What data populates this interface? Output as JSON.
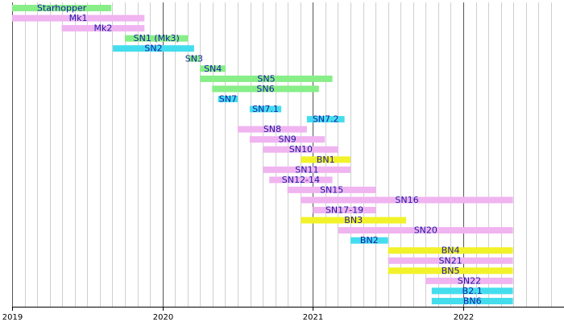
{
  "chart_data": {
    "type": "gantt",
    "title": "",
    "xlabel": "",
    "ylabel": "",
    "x_unit": "year",
    "xlim": [
      2019.0,
      2022.6
    ],
    "grid": {
      "major": "yearly",
      "minor": "monthly"
    },
    "tick_labels": [
      "2019",
      "2020",
      "2021",
      "2022"
    ],
    "tick_values": [
      2019,
      2020,
      2021,
      2022
    ],
    "colors": {
      "green": "#88ee88",
      "pink": "#f0b4f0",
      "cyan": "#44ddee",
      "yellow": "#f2f22a",
      "label": "#1a1aa6"
    },
    "bars": [
      {
        "label": "Starhopper",
        "start": 2019.0,
        "end": 2019.66,
        "color": "green"
      },
      {
        "label": "Mk1",
        "start": 2019.0,
        "end": 2019.88,
        "color": "pink"
      },
      {
        "label": "Mk2",
        "start": 2019.33,
        "end": 2019.88,
        "color": "pink"
      },
      {
        "label": "SN1 (Mk3)",
        "start": 2019.75,
        "end": 2020.17,
        "color": "green"
      },
      {
        "label": "SN2",
        "start": 2019.67,
        "end": 2020.21,
        "color": "cyan"
      },
      {
        "label": "SN3",
        "start": 2020.17,
        "end": 2020.25,
        "color": "green"
      },
      {
        "label": "SN4",
        "start": 2020.25,
        "end": 2020.42,
        "color": "green"
      },
      {
        "label": "SN5",
        "start": 2020.25,
        "end": 2021.13,
        "color": "green"
      },
      {
        "label": "SN6",
        "start": 2020.33,
        "end": 2021.04,
        "color": "green"
      },
      {
        "label": "SN7",
        "start": 2020.37,
        "end": 2020.5,
        "color": "cyan"
      },
      {
        "label": "SN7.1",
        "start": 2020.58,
        "end": 2020.79,
        "color": "cyan"
      },
      {
        "label": "SN7.2",
        "start": 2020.96,
        "end": 2021.21,
        "color": "cyan"
      },
      {
        "label": "SN8",
        "start": 2020.5,
        "end": 2020.96,
        "color": "pink"
      },
      {
        "label": "SN9",
        "start": 2020.58,
        "end": 2021.08,
        "color": "pink"
      },
      {
        "label": "SN10",
        "start": 2020.67,
        "end": 2021.17,
        "color": "pink"
      },
      {
        "label": "BN1",
        "start": 2020.92,
        "end": 2021.25,
        "color": "yellow"
      },
      {
        "label": "SN11",
        "start": 2020.67,
        "end": 2021.25,
        "color": "pink"
      },
      {
        "label": "SN12-14",
        "start": 2020.71,
        "end": 2021.13,
        "color": "pink"
      },
      {
        "label": "SN15",
        "start": 2020.83,
        "end": 2021.42,
        "color": "pink"
      },
      {
        "label": "SN16",
        "start": 2020.92,
        "end": 2022.33,
        "color": "pink"
      },
      {
        "label": "SN17-19",
        "start": 2021.0,
        "end": 2021.42,
        "color": "pink"
      },
      {
        "label": "BN3",
        "start": 2020.92,
        "end": 2021.62,
        "color": "yellow"
      },
      {
        "label": "SN20",
        "start": 2021.17,
        "end": 2022.33,
        "color": "pink"
      },
      {
        "label": "BN2",
        "start": 2021.25,
        "end": 2021.5,
        "color": "cyan"
      },
      {
        "label": "BN4",
        "start": 2021.5,
        "end": 2022.33,
        "color": "yellow"
      },
      {
        "label": "SN21",
        "start": 2021.5,
        "end": 2022.33,
        "color": "pink"
      },
      {
        "label": "BN5",
        "start": 2021.5,
        "end": 2022.33,
        "color": "yellow"
      },
      {
        "label": "SN22",
        "start": 2021.75,
        "end": 2022.33,
        "color": "pink"
      },
      {
        "label": "B2.1",
        "start": 2021.79,
        "end": 2022.33,
        "color": "cyan"
      },
      {
        "label": "BN6",
        "start": 2021.79,
        "end": 2022.33,
        "color": "cyan"
      }
    ]
  }
}
